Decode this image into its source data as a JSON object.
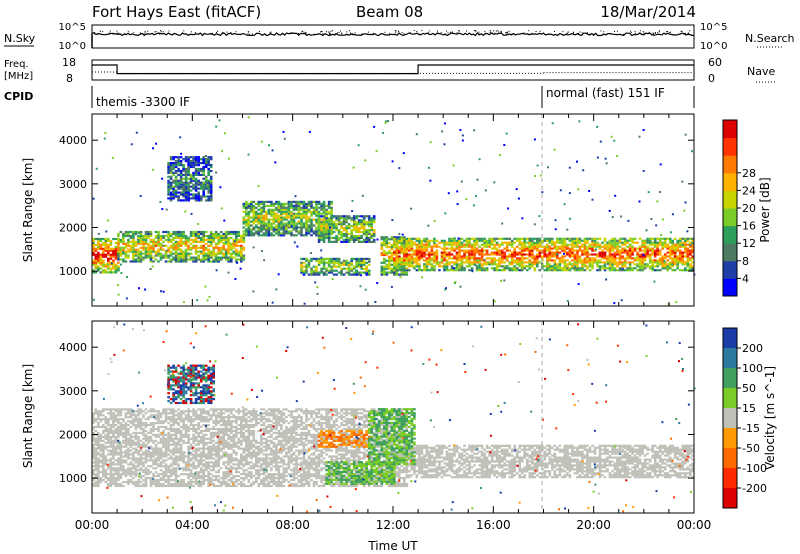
{
  "header": {
    "site": "Fort Hays East (fitACF)",
    "beam": "Beam 08",
    "date": "18/Mar/2014"
  },
  "status_panels": {
    "noise": {
      "left_label": "N.Sky",
      "right_label": "N.Search",
      "left_ticks": [
        "10^5",
        "10^0"
      ],
      "right_ticks": [
        "10^5",
        "10^0"
      ]
    },
    "frequency": {
      "left_label_line1": "Freq.",
      "left_label_line2": "[MHz]",
      "right_label": "Nave",
      "left_ticks": [
        "18",
        "8"
      ],
      "right_ticks": [
        "60",
        "0"
      ],
      "steps": [
        {
          "start_hr": 0.0,
          "end_hr": 1.0,
          "freq_mhz": 15.5
        },
        {
          "start_hr": 1.0,
          "end_hr": 13.0,
          "freq_mhz": 11.2
        },
        {
          "start_hr": 13.0,
          "end_hr": 24.0,
          "freq_mhz": 15.5
        }
      ],
      "nave_steps": [
        {
          "start_hr": 0.0,
          "end_hr": 1.0,
          "nave": 24
        },
        {
          "start_hr": 1.0,
          "end_hr": 18.0,
          "nave": 20
        },
        {
          "start_hr": 18.0,
          "end_hr": 24.0,
          "nave": 22
        }
      ]
    },
    "cpid": {
      "label": "CPID",
      "segments": [
        {
          "start_hr": 0.0,
          "end_hr": 18.0,
          "text": "themis -3300 IF"
        },
        {
          "start_hr": 18.0,
          "end_hr": 24.0,
          "text": "normal (fast) 151 IF"
        }
      ]
    }
  },
  "chart_data": [
    {
      "type": "heatmap",
      "name": "power-panel",
      "xlabel": "",
      "ylabel": "Slant Range [km]",
      "xlim": [
        0,
        24
      ],
      "ylim": [
        200,
        4600
      ],
      "yticks": [
        "1000",
        "2000",
        "3000",
        "4000"
      ],
      "colorbar": {
        "label": "Power [dB]",
        "tick_labels": [
          "4",
          "8",
          "12",
          "16",
          "20",
          "24",
          "28"
        ],
        "colors": [
          "#0000ff",
          "#1e3fa8",
          "#4d7a62",
          "#2e9e5c",
          "#7ccc28",
          "#c8d400",
          "#ffb100",
          "#ff7a00",
          "#ff3300",
          "#dd0000"
        ]
      },
      "echo_regions": [
        {
          "t0": 0.0,
          "t1": 1.0,
          "r0": 950,
          "r1": 1750,
          "level": 0.75
        },
        {
          "t0": 1.0,
          "t1": 6.0,
          "r0": 1200,
          "r1": 1900,
          "level": 0.55
        },
        {
          "t0": 6.0,
          "t1": 9.5,
          "r0": 1800,
          "r1": 2600,
          "level": 0.45
        },
        {
          "t0": 3.0,
          "t1": 4.7,
          "r0": 2600,
          "r1": 3600,
          "level": 0.25
        },
        {
          "t0": 8.3,
          "t1": 11.0,
          "r0": 900,
          "r1": 1300,
          "level": 0.45
        },
        {
          "t0": 9.0,
          "t1": 11.2,
          "r0": 1650,
          "r1": 2250,
          "level": 0.45
        },
        {
          "t0": 11.5,
          "t1": 12.5,
          "r0": 900,
          "r1": 1800,
          "level": 0.55
        },
        {
          "t0": 12.0,
          "t1": 24.0,
          "r0": 1000,
          "r1": 1750,
          "level": 0.7
        }
      ]
    },
    {
      "type": "heatmap",
      "name": "velocity-panel",
      "xlabel": "Time UT",
      "ylabel": "Slant Range [km]",
      "xlim": [
        0,
        24
      ],
      "ylim": [
        200,
        4600
      ],
      "xticks": [
        "00:00",
        "04:00",
        "08:00",
        "12:00",
        "16:00",
        "20:00",
        "00:00"
      ],
      "yticks": [
        "1000",
        "2000",
        "3000",
        "4000"
      ],
      "colorbar": {
        "label": "Velocity [m s^-1]",
        "tick_labels": [
          "200",
          "100",
          "50",
          "15",
          "-15",
          "-50",
          "-100",
          "-200"
        ],
        "colors": [
          "#1c3ca8",
          "#2d7aa0",
          "#3fa060",
          "#7ccc28",
          "#c0c0b8",
          "#ff9a00",
          "#ff6a00",
          "#ff2a00",
          "#dd0000"
        ]
      },
      "echo_regions": [
        {
          "t0": 0.0,
          "t1": 12.5,
          "r0": 800,
          "r1": 2600,
          "class": "ground"
        },
        {
          "t0": 12.5,
          "t1": 24.0,
          "r0": 1000,
          "r1": 1750,
          "class": "ground"
        },
        {
          "t0": 9.0,
          "t1": 11.0,
          "r0": 1700,
          "r1": 2100,
          "class": "away"
        },
        {
          "t0": 9.3,
          "t1": 12.0,
          "r0": 850,
          "r1": 1350,
          "class": "toward"
        },
        {
          "t0": 11.0,
          "t1": 12.8,
          "r0": 1300,
          "r1": 2600,
          "class": "toward"
        },
        {
          "t0": 3.0,
          "t1": 4.8,
          "r0": 2700,
          "r1": 3600,
          "class": "mixed"
        }
      ]
    }
  ]
}
